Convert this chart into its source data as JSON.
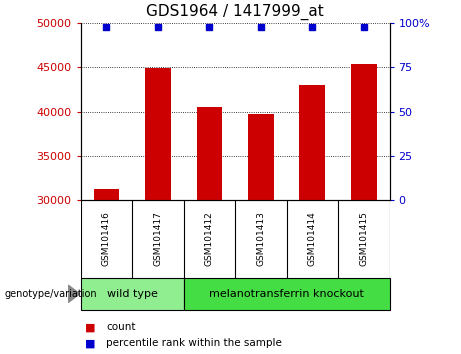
{
  "title": "GDS1964 / 1417999_at",
  "samples": [
    "GSM101416",
    "GSM101417",
    "GSM101412",
    "GSM101413",
    "GSM101414",
    "GSM101415"
  ],
  "counts": [
    31300,
    44900,
    40500,
    39700,
    43000,
    45400
  ],
  "percentile_ranks": [
    98,
    98,
    98,
    98,
    98,
    98
  ],
  "ylim_left": [
    30000,
    50000
  ],
  "ylim_right": [
    0,
    100
  ],
  "yticks_left": [
    30000,
    35000,
    40000,
    45000,
    50000
  ],
  "yticks_right": [
    0,
    25,
    50,
    75,
    100
  ],
  "bar_color": "#cc0000",
  "percentile_color": "#0000cc",
  "bar_width": 0.5,
  "groups": [
    {
      "label": "wild type",
      "indices": [
        0,
        1
      ],
      "color": "#90ee90"
    },
    {
      "label": "melanotransferrin knockout",
      "indices": [
        2,
        3,
        4,
        5
      ],
      "color": "#44dd44"
    }
  ],
  "group_label_prefix": "genotype/variation",
  "legend_count_label": "count",
  "legend_percentile_label": "percentile rank within the sample",
  "background_color": "#ffffff",
  "plot_bg_color": "#ffffff",
  "tick_label_area_color": "#cccccc",
  "grid_color": "#000000",
  "title_fontsize": 11,
  "tick_fontsize": 8,
  "sample_fontsize": 6.5
}
